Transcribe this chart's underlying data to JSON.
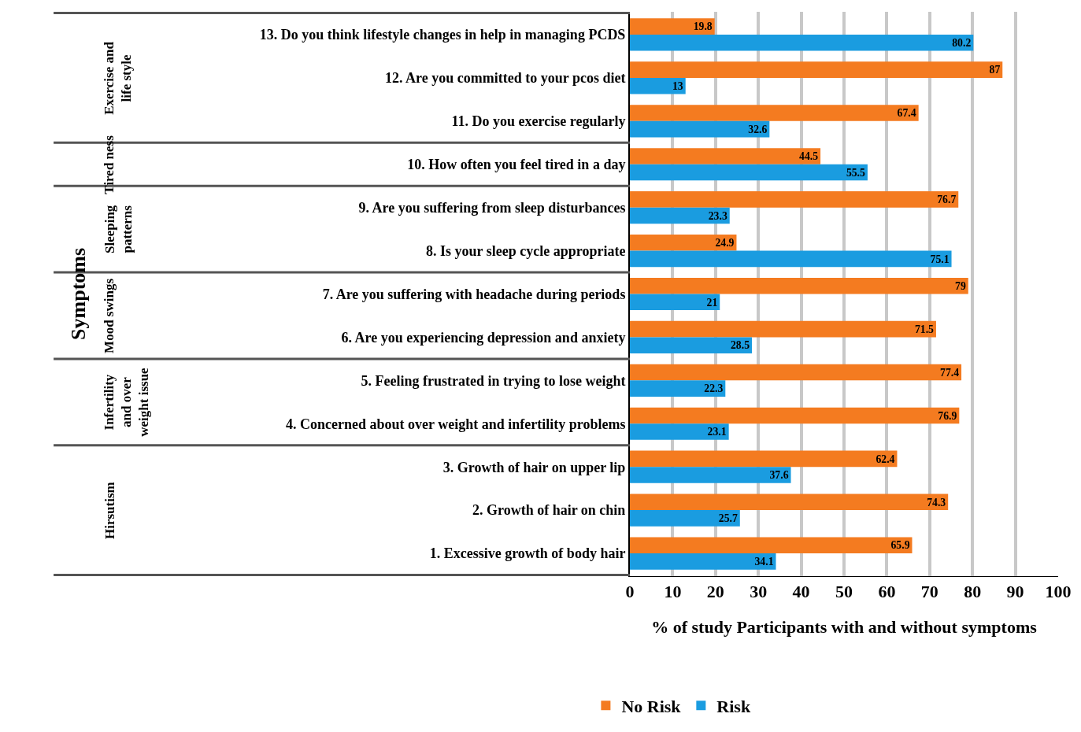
{
  "chart_data": {
    "type": "bar",
    "orientation": "horizontal",
    "xlabel": "% of study Participants with and without symptoms",
    "categories": [
      "13. Do you think lifestyle changes in help in managing PCDS",
      "12. Are you committed to your pcos diet",
      "11. Do you exercise regularly",
      "10. How often you feel tired in a day",
      "9. Are you suffering from sleep disturbances",
      "8. Is your sleep cycle appropriate",
      "7. Are you suffering with headache during periods",
      "6. Are you experiencing depression and anxiety",
      "5. Feeling frustrated in trying to lose weight",
      "4. Concerned about over weight and infertility problems",
      "3. Growth of hair on upper lip",
      "2. Growth of hair on chin",
      "1. Excessive growth of body hair"
    ],
    "series": [
      {
        "name": "No Risk",
        "color": "#f47b20",
        "values": [
          19.8,
          87,
          67.4,
          44.5,
          76.7,
          24.9,
          79,
          71.5,
          77.4,
          76.9,
          62.4,
          74.3,
          65.9
        ]
      },
      {
        "name": "Risk",
        "color": "#1a9ce0",
        "values": [
          80.2,
          13,
          32.6,
          55.5,
          23.3,
          75.1,
          21,
          28.5,
          22.3,
          23.1,
          37.6,
          25.7,
          34.1
        ]
      }
    ],
    "data_labels": true,
    "xlim": [
      0,
      100
    ],
    "xticks": [
      0,
      10,
      20,
      30,
      40,
      50,
      60,
      70,
      80,
      90,
      100
    ],
    "grid": "x",
    "legend": "bottom",
    "annotations": [
      "Exercise and life style",
      "Tired ness",
      "Sleeping patterns",
      "Mood swings",
      "Infertility and over weight issue",
      "Hirsutism",
      "Symptoms"
    ]
  }
}
